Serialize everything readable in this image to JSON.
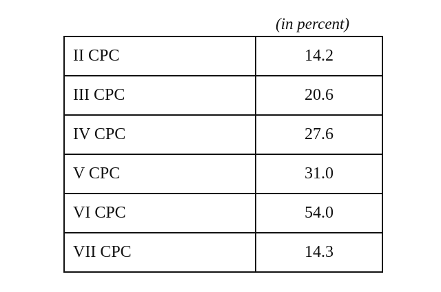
{
  "unit_note": "(in percent)",
  "rows": [
    {
      "label": "II CPC",
      "value": "14.2"
    },
    {
      "label": "III CPC",
      "value": "20.6"
    },
    {
      "label": "IV CPC",
      "value": "27.6"
    },
    {
      "label": "V CPC",
      "value": "31.0"
    },
    {
      "label": "VI CPC",
      "value": "54.0"
    },
    {
      "label": "VII CPC",
      "value": "14.3"
    }
  ]
}
